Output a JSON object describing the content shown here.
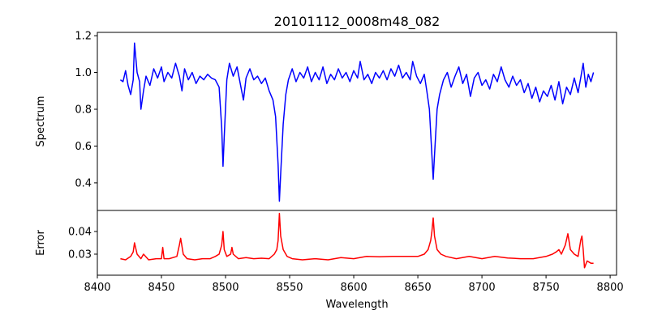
{
  "chart_data": [
    {
      "type": "line",
      "title": "20101112_0008m48_082",
      "xlabel": "",
      "ylabel": "Spectrum",
      "xlim": [
        8400,
        8805
      ],
      "ylim": [
        0.25,
        1.218
      ],
      "yticks": [
        0.4,
        0.6,
        0.8,
        1.0,
        1.2
      ],
      "ytick_labels": [
        "0.4",
        "0.6",
        "0.8",
        "1.0",
        "1.2"
      ],
      "series": [
        {
          "name": "Spectrum",
          "color": "#0000ff",
          "x": [
            8418,
            8420,
            8422,
            8424,
            8426,
            8428,
            8429,
            8431,
            8433,
            8434,
            8436,
            8438,
            8441,
            8444,
            8447,
            8450,
            8452,
            8455,
            8458,
            8461,
            8464,
            8466,
            8468,
            8471,
            8474,
            8477,
            8480,
            8483,
            8486,
            8489,
            8492,
            8495,
            8497,
            8498,
            8499,
            8501,
            8503,
            8506,
            8509,
            8512,
            8514,
            8516,
            8519,
            8522,
            8525,
            8528,
            8531,
            8534,
            8537,
            8539,
            8541,
            8542,
            8543,
            8545,
            8547,
            8549,
            8552,
            8555,
            8558,
            8561,
            8564,
            8567,
            8570,
            8573,
            8576,
            8579,
            8582,
            8585,
            8588,
            8591,
            8594,
            8597,
            8600,
            8603,
            8605,
            8608,
            8611,
            8614,
            8617,
            8620,
            8623,
            8626,
            8629,
            8632,
            8635,
            8638,
            8641,
            8644,
            8646,
            8649,
            8652,
            8655,
            8657,
            8659,
            8661,
            8662,
            8663,
            8665,
            8667,
            8670,
            8673,
            8676,
            8679,
            8682,
            8685,
            8688,
            8691,
            8694,
            8697,
            8700,
            8703,
            8706,
            8709,
            8712,
            8715,
            8718,
            8721,
            8724,
            8727,
            8730,
            8733,
            8736,
            8739,
            8742,
            8745,
            8748,
            8751,
            8754,
            8757,
            8760,
            8763,
            8766,
            8769,
            8772,
            8775,
            8777,
            8779,
            8781,
            8783,
            8785,
            8787
          ],
          "y": [
            0.96,
            0.95,
            1.01,
            0.93,
            0.88,
            0.96,
            1.16,
            1.0,
            0.95,
            0.8,
            0.9,
            0.98,
            0.93,
            1.02,
            0.97,
            1.03,
            0.95,
            1.0,
            0.97,
            1.05,
            0.98,
            0.9,
            1.02,
            0.96,
            1.0,
            0.94,
            0.98,
            0.96,
            0.99,
            0.97,
            0.96,
            0.92,
            0.7,
            0.49,
            0.65,
            0.96,
            1.05,
            0.98,
            1.03,
            0.92,
            0.85,
            0.97,
            1.02,
            0.96,
            0.98,
            0.94,
            0.97,
            0.9,
            0.85,
            0.76,
            0.5,
            0.3,
            0.45,
            0.72,
            0.88,
            0.96,
            1.02,
            0.95,
            1.0,
            0.97,
            1.03,
            0.95,
            1.0,
            0.96,
            1.03,
            0.94,
            0.99,
            0.96,
            1.02,
            0.97,
            1.0,
            0.95,
            1.01,
            0.97,
            1.06,
            0.96,
            0.99,
            0.94,
            1.0,
            0.97,
            1.01,
            0.96,
            1.02,
            0.98,
            1.04,
            0.97,
            1.0,
            0.96,
            1.06,
            0.98,
            0.94,
            0.99,
            0.9,
            0.8,
            0.55,
            0.42,
            0.55,
            0.8,
            0.88,
            0.96,
            1.0,
            0.92,
            0.98,
            1.03,
            0.94,
            0.99,
            0.87,
            0.97,
            1.0,
            0.93,
            0.96,
            0.91,
            0.99,
            0.95,
            1.03,
            0.96,
            0.92,
            0.98,
            0.93,
            0.96,
            0.89,
            0.94,
            0.86,
            0.92,
            0.84,
            0.9,
            0.87,
            0.93,
            0.85,
            0.95,
            0.83,
            0.92,
            0.88,
            0.97,
            0.89,
            0.97,
            1.05,
            0.92,
            0.99,
            0.95,
            1.0
          ]
        }
      ]
    },
    {
      "type": "line",
      "title": "",
      "xlabel": "Wavelength",
      "ylabel": "Error",
      "xlim": [
        8400,
        8805
      ],
      "ylim": [
        0.0207,
        0.0493
      ],
      "xticks": [
        8400,
        8450,
        8500,
        8550,
        8600,
        8650,
        8700,
        8750,
        8800
      ],
      "xtick_labels": [
        "8400",
        "8450",
        "8500",
        "8550",
        "8600",
        "8650",
        "8700",
        "8750",
        "8800"
      ],
      "yticks": [
        0.03,
        0.04
      ],
      "ytick_labels": [
        "0.03",
        "0.04"
      ],
      "series": [
        {
          "name": "Error",
          "color": "#ff0000",
          "x": [
            8418,
            8422,
            8426,
            8428,
            8429,
            8431,
            8434,
            8436,
            8440,
            8446,
            8450,
            8451,
            8452,
            8456,
            8462,
            8464,
            8465,
            8467,
            8470,
            8476,
            8482,
            8488,
            8492,
            8495,
            8497,
            8498,
            8499,
            8501,
            8504,
            8505,
            8506,
            8510,
            8516,
            8522,
            8528,
            8534,
            8538,
            8540,
            8541,
            8542,
            8543,
            8545,
            8548,
            8552,
            8560,
            8570,
            8580,
            8590,
            8600,
            8610,
            8620,
            8630,
            8640,
            8650,
            8655,
            8658,
            8660,
            8661,
            8662,
            8663,
            8665,
            8668,
            8672,
            8680,
            8690,
            8700,
            8710,
            8720,
            8730,
            8740,
            8750,
            8755,
            8758,
            8760,
            8762,
            8765,
            8767,
            8769,
            8772,
            8775,
            8777,
            8778,
            8779,
            8780,
            8782,
            8785,
            8787
          ],
          "y": [
            0.028,
            0.0275,
            0.029,
            0.031,
            0.035,
            0.03,
            0.028,
            0.03,
            0.0275,
            0.028,
            0.028,
            0.033,
            0.028,
            0.028,
            0.029,
            0.034,
            0.037,
            0.03,
            0.028,
            0.0275,
            0.028,
            0.028,
            0.029,
            0.03,
            0.034,
            0.04,
            0.032,
            0.029,
            0.03,
            0.033,
            0.03,
            0.028,
            0.0285,
            0.028,
            0.0282,
            0.028,
            0.03,
            0.032,
            0.036,
            0.048,
            0.038,
            0.032,
            0.029,
            0.028,
            0.0275,
            0.028,
            0.0275,
            0.0285,
            0.028,
            0.029,
            0.0288,
            0.029,
            0.029,
            0.029,
            0.03,
            0.032,
            0.036,
            0.04,
            0.046,
            0.038,
            0.032,
            0.03,
            0.029,
            0.028,
            0.029,
            0.028,
            0.029,
            0.0283,
            0.028,
            0.028,
            0.029,
            0.03,
            0.031,
            0.032,
            0.03,
            0.034,
            0.039,
            0.032,
            0.03,
            0.029,
            0.036,
            0.038,
            0.032,
            0.024,
            0.027,
            0.026,
            0.026
          ]
        }
      ]
    }
  ]
}
